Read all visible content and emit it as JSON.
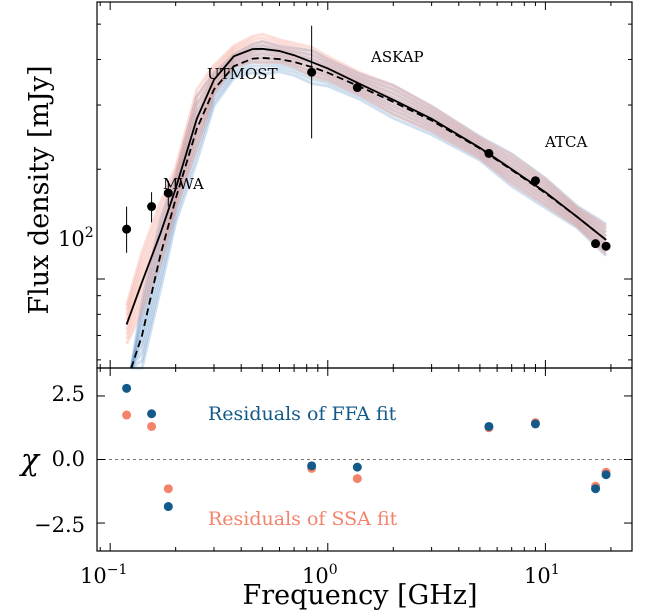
{
  "chart_data": [
    {
      "type": "line",
      "title": "",
      "xlabel": "",
      "ylabel": "Flux density [mJy]",
      "xscale": "log",
      "yscale": "log",
      "xlim": [
        0.087,
        25
      ],
      "ylim": [
        57,
        575
      ],
      "ytick_label": "10",
      "ytick_exp": "2",
      "grid": false,
      "series": [
        {
          "name": "",
          "kind": "scatter-with-errorbars",
          "color": "#000000",
          "points": [
            {
              "x": 0.119,
              "y": 137,
              "err": [
                118,
                158
              ]
            },
            {
              "x": 0.155,
              "y": 158,
              "err": [
                143,
                173
              ]
            },
            {
              "x": 0.185,
              "y": 172,
              "err": [
                158,
                186
              ]
            },
            {
              "x": 0.843,
              "y": 369,
              "err": [
                243,
                495
              ]
            },
            {
              "x": 1.367,
              "y": 335,
              "err": [
                327,
                343
              ]
            },
            {
              "x": 5.5,
              "y": 221,
              "err": [
                216,
                226
              ]
            },
            {
              "x": 9.0,
              "y": 186,
              "err": [
                182,
                190
              ]
            },
            {
              "x": 17.0,
              "y": 125,
              "err": [
                122,
                128
              ]
            },
            {
              "x": 19.0,
              "y": 123,
              "err": [
                120,
                126
              ]
            }
          ]
        },
        {
          "name": "",
          "kind": "solid-model",
          "color": "#000000",
          "x": [
            0.119,
            0.14,
            0.17,
            0.2,
            0.25,
            0.3,
            0.37,
            0.45,
            0.5,
            0.6,
            0.7,
            0.85,
            1.0,
            1.4,
            2.0,
            3.0,
            5.0,
            7.0,
            10.0,
            14.0,
            19.0
          ],
          "y": [
            75,
            98,
            133,
            177,
            275,
            352,
            408,
            427,
            428,
            422,
            411,
            393,
            378,
            343,
            310,
            275,
            229,
            200,
            173,
            148,
            128
          ]
        },
        {
          "name": "",
          "kind": "dashed-model",
          "color": "#000000",
          "x": [
            0.125,
            0.14,
            0.17,
            0.2,
            0.25,
            0.3,
            0.37,
            0.45,
            0.5,
            0.6,
            0.7,
            0.85,
            1.0,
            1.4,
            2.0,
            3.0,
            5.0,
            7.0,
            10.0,
            14.0,
            19.0
          ],
          "y": [
            48,
            70,
            116,
            166,
            258,
            331,
            383,
            402,
            404,
            401,
            394,
            381,
            368,
            337,
            306,
            272,
            228,
            199,
            172,
            148,
            128
          ]
        }
      ],
      "annotations": [
        "MWA",
        "UTMOST",
        "ASKAP",
        "ATCA"
      ]
    },
    {
      "type": "scatter",
      "title": "",
      "xlabel": "Frequency [GHz]",
      "ylabel": "χ",
      "xscale": "log",
      "xlim": [
        0.087,
        25
      ],
      "ylim": [
        -3.6,
        3.6
      ],
      "xtick_labels": [
        {
          "base": "10",
          "exp": "−1"
        },
        {
          "base": "10",
          "exp": "0"
        },
        {
          "base": "10",
          "exp": "1"
        }
      ],
      "yticks": [
        "2.5",
        "0.0",
        "−2.5"
      ],
      "reference_line": 0,
      "series": [
        {
          "name": "Residuals of FFA fit",
          "color": "#135a8a",
          "x": [
            0.119,
            0.155,
            0.185,
            0.843,
            1.367,
            5.5,
            9.0,
            17.0,
            19.0
          ],
          "y": [
            2.8,
            1.8,
            -1.85,
            -0.25,
            -0.3,
            1.3,
            1.4,
            -1.15,
            -0.6
          ]
        },
        {
          "name": "Residuals of SSA fit",
          "color": "#f4836b",
          "x": [
            0.119,
            0.155,
            0.185,
            0.843,
            1.367,
            5.5,
            9.0,
            17.0,
            19.0
          ],
          "y": [
            1.75,
            1.3,
            -1.15,
            -0.35,
            -0.75,
            1.25,
            1.45,
            -1.05,
            -0.5
          ]
        }
      ]
    }
  ]
}
